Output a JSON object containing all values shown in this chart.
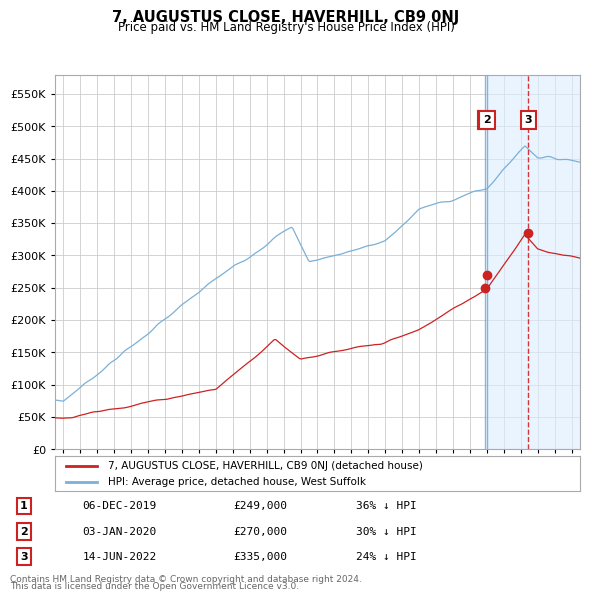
{
  "title": "7, AUGUSTUS CLOSE, HAVERHILL, CB9 0NJ",
  "subtitle": "Price paid vs. HM Land Registry's House Price Index (HPI)",
  "ylabel_ticks": [
    "£0",
    "£50K",
    "£100K",
    "£150K",
    "£200K",
    "£250K",
    "£300K",
    "£350K",
    "£400K",
    "£450K",
    "£500K",
    "£550K"
  ],
  "ytick_values": [
    0,
    50000,
    100000,
    150000,
    200000,
    250000,
    300000,
    350000,
    400000,
    450000,
    500000,
    550000
  ],
  "ylim": [
    0,
    580000
  ],
  "xlim_start": 1994.5,
  "xlim_end": 2025.5,
  "background_color": "#ffffff",
  "grid_color": "#cccccc",
  "hpi_color": "#7ab0d8",
  "price_color": "#cc2222",
  "transactions": [
    {
      "id": 1,
      "date_num": 2019.92,
      "price": 249000,
      "label": "1",
      "note": "06-DEC-2019",
      "price_str": "£249,000",
      "hpi_note": "36% ↓ HPI",
      "line_color": "#7ab0d8",
      "line_style": "solid"
    },
    {
      "id": 2,
      "date_num": 2020.01,
      "price": 270000,
      "label": "2",
      "note": "03-JAN-2020",
      "price_str": "£270,000",
      "hpi_note": "30% ↓ HPI",
      "line_color": "#7ab0d8",
      "line_style": "solid"
    },
    {
      "id": 3,
      "date_num": 2022.45,
      "price": 335000,
      "label": "3",
      "note": "14-JUN-2022",
      "price_str": "£335,000",
      "hpi_note": "24% ↓ HPI",
      "line_color": "#cc2222",
      "line_style": "dashed"
    }
  ],
  "legend_label_red": "7, AUGUSTUS CLOSE, HAVERHILL, CB9 0NJ (detached house)",
  "legend_label_blue": "HPI: Average price, detached house, West Suffolk",
  "footer_line1": "Contains HM Land Registry data © Crown copyright and database right 2024.",
  "footer_line2": "This data is licensed under the Open Government Licence v3.0.",
  "shade_start": 2020.01,
  "shade_color": "#ddeeff"
}
